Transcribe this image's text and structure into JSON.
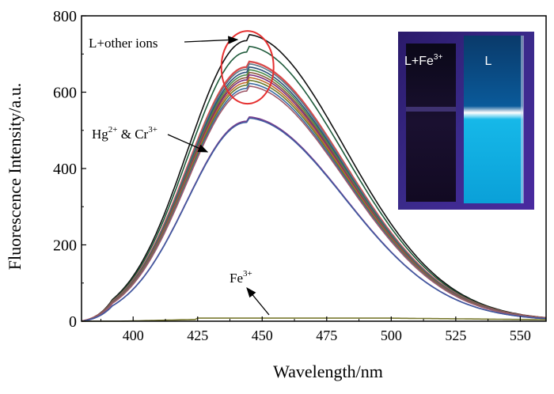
{
  "chart_data": {
    "type": "line",
    "xlabel": "Wavelength/nm",
    "ylabel": "Fluorescence Intensity/a.u.",
    "xlim": [
      380,
      560
    ],
    "ylim": [
      0,
      800
    ],
    "x_ticks": [
      400,
      425,
      450,
      475,
      500,
      525,
      550
    ],
    "y_ticks": [
      0,
      200,
      400,
      600,
      800
    ],
    "grid": false,
    "legend": "none",
    "peak_x": 444,
    "series": [
      {
        "peak": 735,
        "color": "#111111"
      },
      {
        "peak": 705,
        "color": "#1e5a3a"
      },
      {
        "peak": 666,
        "color": "#d94b4b"
      },
      {
        "peak": 660,
        "color": "#5a7a8a"
      },
      {
        "peak": 652,
        "color": "#2a4f7a"
      },
      {
        "peak": 645,
        "color": "#4a8a4a"
      },
      {
        "peak": 638,
        "color": "#8a5a3a"
      },
      {
        "peak": 632,
        "color": "#7a2a7a"
      },
      {
        "peak": 625,
        "color": "#c06a2a"
      },
      {
        "peak": 618,
        "color": "#6a7a2a"
      },
      {
        "peak": 610,
        "color": "#3a6aa0"
      },
      {
        "peak": 603,
        "color": "#a05a6a"
      },
      {
        "peak": 524,
        "color": "#7a3a8a"
      },
      {
        "peak": 521,
        "color": "#3f5aa0"
      },
      {
        "peak": 8,
        "color": "#7a7a30"
      }
    ],
    "annotations": [
      {
        "base": "L+other ions",
        "sup": ""
      },
      {
        "base": "Hg",
        "sup": "2+",
        "base2": " & Cr",
        "sup2": "3+"
      },
      {
        "base": "Fe",
        "sup": "3+"
      }
    ],
    "highlight_color": "#e53030",
    "inset": {
      "left_label": "L+Fe",
      "left_label_sup": "3+",
      "right_label": "L",
      "glow_color": "#16b8e8"
    }
  }
}
